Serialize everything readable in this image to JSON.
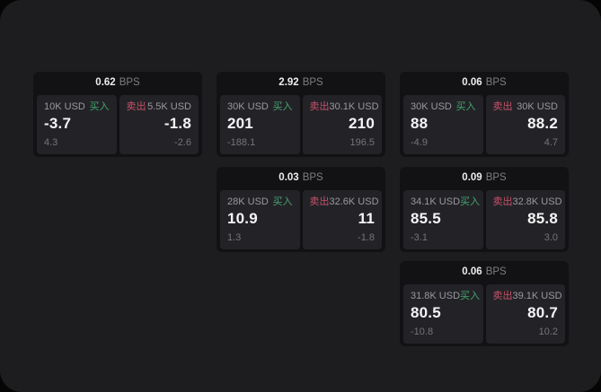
{
  "unit_label": "BPS",
  "buy_label": "买入",
  "sell_label": "卖出",
  "colors": {
    "buy_green": "#44a56e",
    "sell_red": "#c9506a",
    "page_bg": "#1d1d1f",
    "card_bg": "#121214",
    "panel_bg": "#232327"
  },
  "cards": [
    {
      "bps_value": "0.62",
      "buy_size": "10K USD",
      "buy_value": "-3.7",
      "buy_sub": "4.3",
      "sell_size": "5.5K USD",
      "sell_value": "-1.8",
      "sell_sub": "-2.6"
    },
    {
      "bps_value": "2.92",
      "buy_size": "30K USD",
      "buy_value": "201",
      "buy_sub": "-188.1",
      "sell_size": "30.1K USD",
      "sell_value": "210",
      "sell_sub": "196.5"
    },
    {
      "bps_value": "0.06",
      "buy_size": "30K USD",
      "buy_value": "88",
      "buy_sub": "-4.9",
      "sell_size": "30K USD",
      "sell_value": "88.2",
      "sell_sub": "4.7"
    },
    {
      "bps_value": "0.03",
      "buy_size": "28K USD",
      "buy_value": "10.9",
      "buy_sub": "1.3",
      "sell_size": "32.6K USD",
      "sell_value": "11",
      "sell_sub": "-1.8"
    },
    {
      "bps_value": "0.09",
      "buy_size": "34.1K USD",
      "buy_value": "85.5",
      "buy_sub": "-3.1",
      "sell_size": "32.8K USD",
      "sell_value": "85.8",
      "sell_sub": "3.0"
    },
    {
      "bps_value": "0.06",
      "buy_size": "31.8K USD",
      "buy_value": "80.5",
      "buy_sub": "-10.8",
      "sell_size": "39.1K USD",
      "sell_value": "80.7",
      "sell_sub": "10.2"
    }
  ]
}
